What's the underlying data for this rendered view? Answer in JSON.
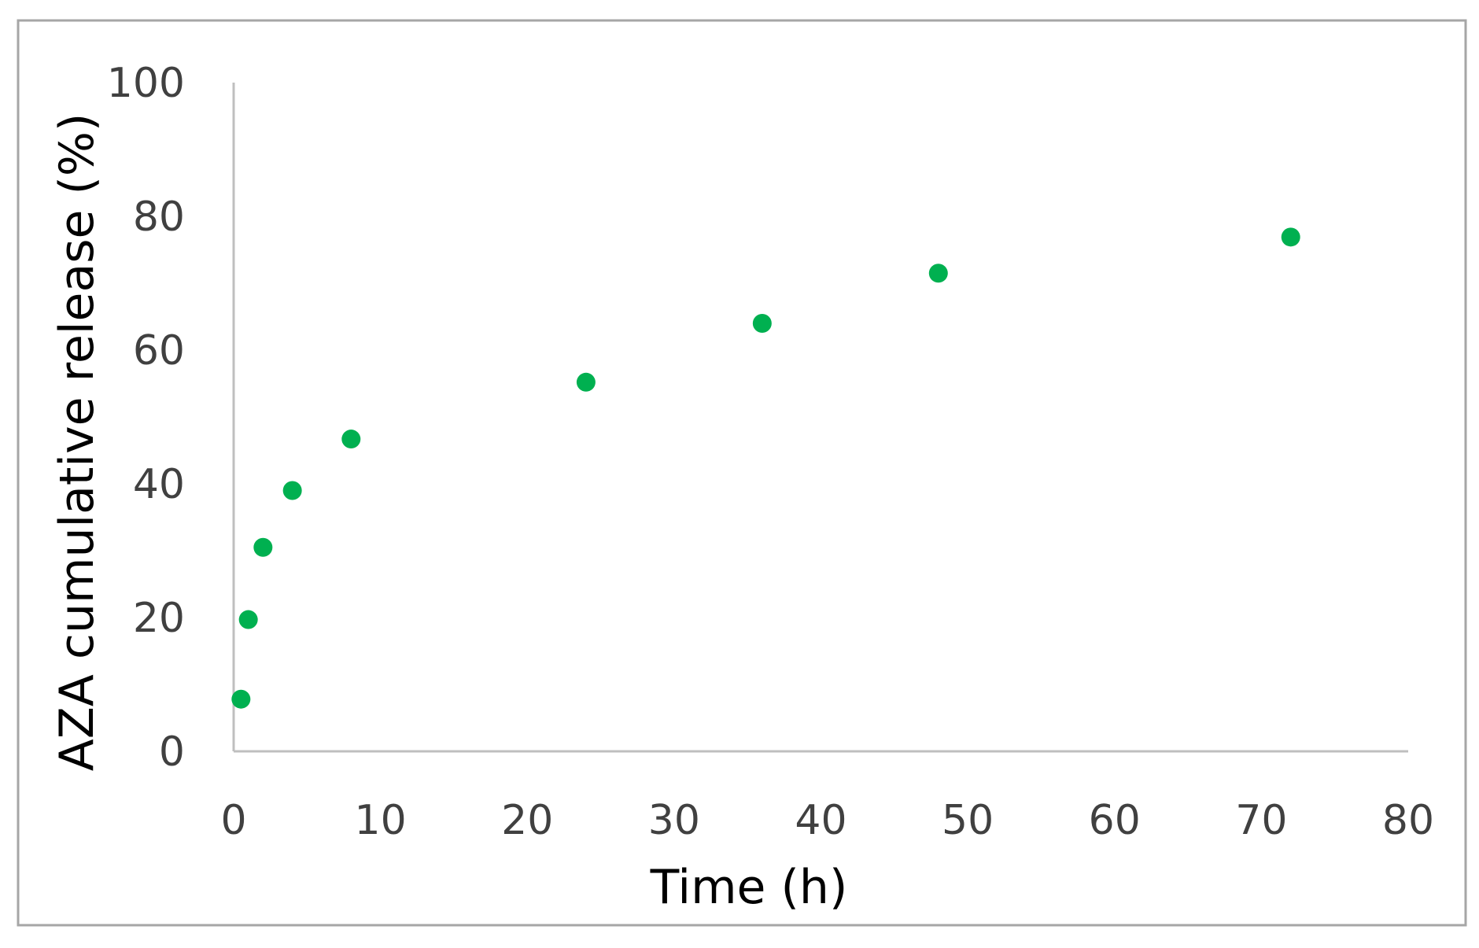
{
  "chart_data": {
    "type": "scatter",
    "xlabel": "Time (h)",
    "ylabel": "AZA cumulative release (%)",
    "xlim": [
      0,
      80
    ],
    "ylim": [
      0,
      100
    ],
    "x_ticks": [
      "0",
      "10",
      "20",
      "30",
      "40",
      "50",
      "60",
      "70",
      "80"
    ],
    "y_ticks": [
      "0",
      "20",
      "40",
      "60",
      "80",
      "100"
    ],
    "grid": false,
    "legend": "none",
    "series": [
      {
        "color": "#00b050",
        "points": [
          {
            "x": 0.5,
            "y": 7.8
          },
          {
            "x": 1,
            "y": 19.7
          },
          {
            "x": 2,
            "y": 30.5
          },
          {
            "x": 4,
            "y": 39
          },
          {
            "x": 8,
            "y": 46.7
          },
          {
            "x": 24,
            "y": 55.2
          },
          {
            "x": 36,
            "y": 64
          },
          {
            "x": 48,
            "y": 71.5
          },
          {
            "x": 72,
            "y": 76.9
          }
        ]
      }
    ]
  }
}
